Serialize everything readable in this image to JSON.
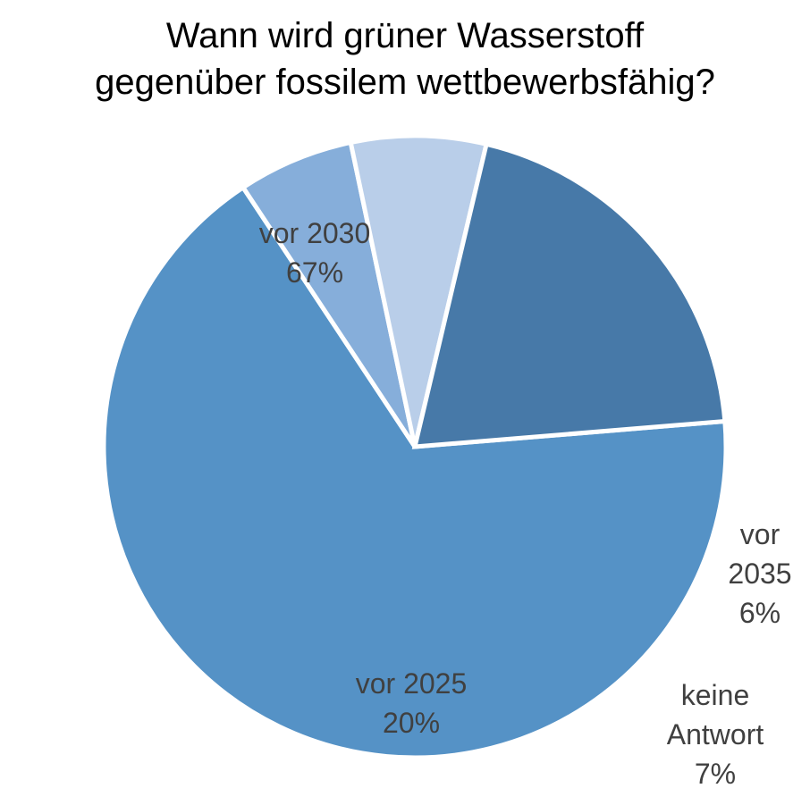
{
  "chart_data": {
    "type": "pie",
    "title_lines": [
      "Wann wird grüner Wasserstoff",
      "gegenüber fossilem wettbewerbsfähig?"
    ],
    "slices": [
      {
        "category": "vor 2030",
        "value": 67,
        "percent_label": "67%",
        "label_lines": [
          "vor 2030",
          "67%"
        ],
        "color": "#5592C6"
      },
      {
        "category": "vor 2035",
        "value": 6,
        "percent_label": "6%",
        "label_lines": [
          "vor",
          "2035",
          "6%"
        ],
        "color": "#86AEDA"
      },
      {
        "category": "keine Antwort",
        "value": 7,
        "percent_label": "7%",
        "label_lines": [
          "keine",
          "Antwort",
          "7%"
        ],
        "color": "#B9CEE9"
      },
      {
        "category": "vor 2025",
        "value": 20,
        "percent_label": "20%",
        "label_lines": [
          "vor 2025",
          "20%"
        ],
        "color": "#4779A8"
      }
    ],
    "legend": "none",
    "label_color": "#404040",
    "separator_color": "#FFFFFF"
  }
}
